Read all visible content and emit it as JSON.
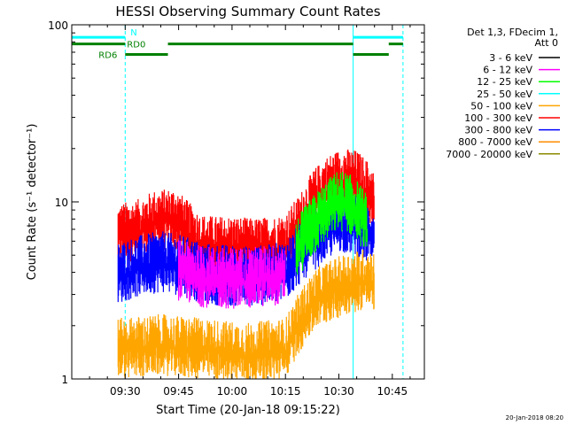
{
  "chart_data": {
    "type": "line",
    "title": "HESSI Observing Summary Count Rates",
    "xlabel": "Start Time (20-Jan-18 09:15:22)",
    "ylabel": "Count Rate (s⁻¹ detector⁻¹)",
    "y_scale": "log",
    "ylim": [
      1,
      100
    ],
    "x_unit": "HH:MM",
    "xlim": [
      "09:15",
      "10:54"
    ],
    "x_ticks": [
      "09:30",
      "09:45",
      "10:00",
      "10:15",
      "10:30",
      "10:45"
    ],
    "y_ticks": [
      "1",
      "10",
      "100"
    ],
    "grid": false,
    "legend": {
      "placement": "right",
      "header": [
        "Det 1,3, FDecim 1,",
        "Att 0"
      ],
      "entries": [
        {
          "label": "3 - 6 keV",
          "color": "#000000"
        },
        {
          "label": "6 - 12 keV",
          "color": "#ff00ff"
        },
        {
          "label": "12 - 25 keV",
          "color": "#00ff00"
        },
        {
          "label": "25 - 50 keV",
          "color": "#00ffff"
        },
        {
          "label": "50 - 100 keV",
          "color": "#ffa500"
        },
        {
          "label": "100 - 300 keV",
          "color": "#ff0000"
        },
        {
          "label": "300 - 800 keV",
          "color": "#0000ff"
        },
        {
          "label": "800 - 7000 keV",
          "color": "#ff8c00"
        },
        {
          "label": "7000 - 20000 keV",
          "color": "#8b8b00"
        }
      ]
    },
    "series": [
      {
        "name": "100 - 300 keV",
        "color": "#ff0000",
        "points": [
          [
            "09:28",
            8.0
          ],
          [
            "09:34",
            8.5
          ],
          [
            "09:38",
            9.5
          ],
          [
            "09:44",
            9.8
          ],
          [
            "09:47",
            8.5
          ],
          [
            "09:51",
            7.0
          ],
          [
            "09:55",
            6.8
          ],
          [
            "10:00",
            6.8
          ],
          [
            "10:06",
            6.6
          ],
          [
            "10:12",
            6.8
          ],
          [
            "10:15",
            7.0
          ],
          [
            "10:19",
            9.0
          ],
          [
            "10:23",
            12.5
          ],
          [
            "10:27",
            15.0
          ],
          [
            "10:31",
            16.5
          ],
          [
            "10:35",
            16.0
          ],
          [
            "10:38",
            14.0
          ],
          [
            "10:40",
            12.0
          ]
        ]
      },
      {
        "name": "300 - 800 keV",
        "color": "#0000ff",
        "points": [
          [
            "09:28",
            4.8
          ],
          [
            "09:34",
            5.3
          ],
          [
            "09:40",
            5.6
          ],
          [
            "09:46",
            5.3
          ],
          [
            "09:52",
            4.8
          ],
          [
            "09:58",
            4.7
          ],
          [
            "10:04",
            4.6
          ],
          [
            "10:10",
            4.7
          ],
          [
            "10:15",
            4.9
          ],
          [
            "10:20",
            6.5
          ],
          [
            "10:25",
            8.0
          ],
          [
            "10:30",
            9.5
          ],
          [
            "10:35",
            9.0
          ],
          [
            "10:40",
            7.5
          ]
        ]
      },
      {
        "name": "12 - 25 keV",
        "color": "#00ff00",
        "points": [
          [
            "10:18",
            6.5
          ],
          [
            "10:24",
            9.5
          ],
          [
            "10:30",
            12.5
          ],
          [
            "10:34",
            11.5
          ],
          [
            "10:38",
            9.0
          ]
        ]
      },
      {
        "name": "6 - 12 keV",
        "color": "#ff00ff",
        "points": [
          [
            "09:45",
            5.0
          ],
          [
            "09:52",
            4.6
          ],
          [
            "10:00",
            4.5
          ],
          [
            "10:08",
            4.6
          ],
          [
            "10:15",
            4.8
          ]
        ]
      },
      {
        "name": "50 - 100 keV",
        "color": "#ffa500",
        "points": [
          [
            "09:28",
            1.8
          ],
          [
            "09:40",
            1.9
          ],
          [
            "09:52",
            1.8
          ],
          [
            "10:04",
            1.7
          ],
          [
            "10:15",
            1.8
          ],
          [
            "10:24",
            3.5
          ],
          [
            "10:32",
            4.2
          ],
          [
            "10:38",
            4.5
          ],
          [
            "10:40",
            4.3
          ]
        ]
      }
    ],
    "status_bars": [
      {
        "label": "N",
        "color": "#00ffff",
        "y": 85,
        "segments": [
          [
            "09:15",
            "09:30"
          ],
          [
            "10:34",
            "10:48"
          ]
        ]
      },
      {
        "label": "RD0",
        "color": "#008000",
        "y": 78,
        "segments": [
          [
            "09:15",
            "09:30"
          ],
          [
            "09:42",
            "10:34"
          ],
          [
            "10:44",
            "10:48"
          ]
        ]
      },
      {
        "label": "RD6",
        "color": "#008000",
        "y": 68,
        "segments": [
          [
            "09:30",
            "09:42"
          ],
          [
            "10:34",
            "10:44"
          ]
        ]
      }
    ],
    "vertical_markers": [
      {
        "x": "09:15",
        "color": "#00ffff",
        "style": "solid"
      },
      {
        "x": "09:30",
        "color": "#00ffff",
        "style": "dashed"
      },
      {
        "x": "10:34",
        "color": "#00ffff",
        "style": "solid"
      },
      {
        "x": "10:48",
        "color": "#00ffff",
        "style": "dashed"
      }
    ]
  },
  "footer_date": "20-Jan-2018 08:20"
}
